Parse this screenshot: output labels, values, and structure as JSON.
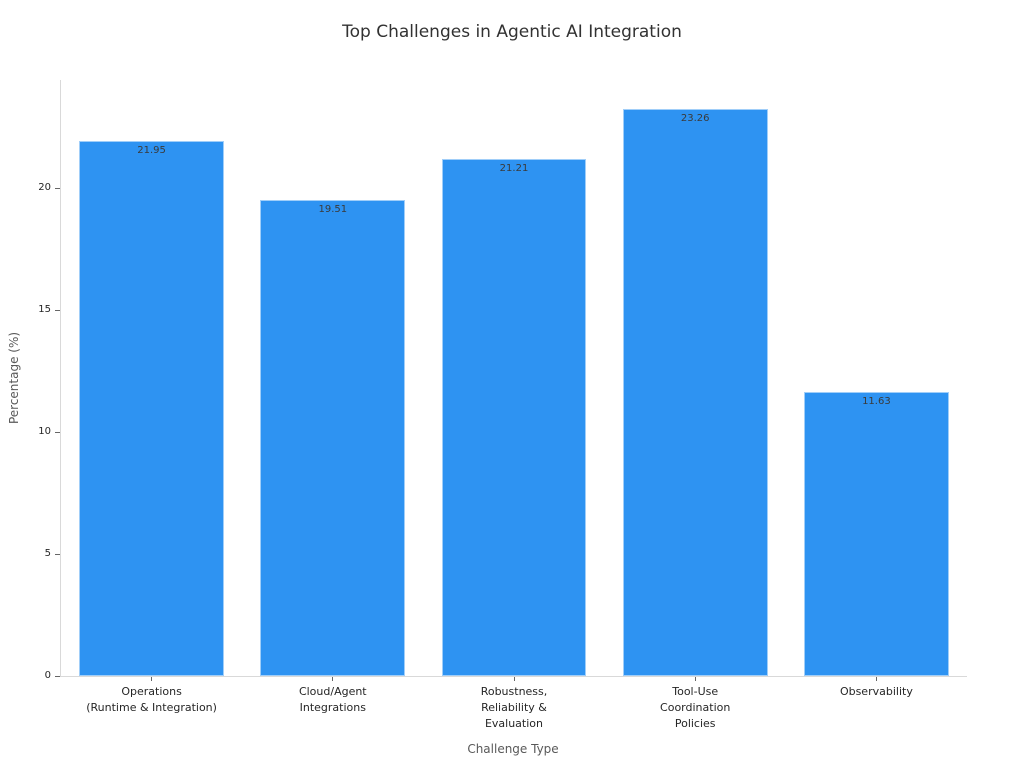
{
  "chart_data": {
    "type": "bar",
    "title": "Top Challenges in Agentic AI Integration",
    "xlabel": "Challenge Type",
    "ylabel": "Percentage (%)",
    "categories": [
      "Operations\n(Runtime & Integration)",
      "Cloud/Agent\nIntegrations",
      "Robustness,\nReliability &\nEvaluation",
      "Tool-Use\nCoordination\nPolicies",
      "Observability"
    ],
    "values": [
      21.95,
      19.51,
      21.21,
      23.26,
      11.63
    ],
    "value_labels": [
      "21.95",
      "19.51",
      "21.21",
      "23.26",
      "11.63"
    ],
    "yticks": [
      0,
      5,
      10,
      15,
      20
    ],
    "ytick_labels": [
      "0",
      "5",
      "10",
      "15",
      "20"
    ],
    "ylim": [
      0,
      24.43
    ],
    "bar_color": "#2E93F2",
    "bar_edge_color": "rgba(255,255,255,0.55)",
    "grid": "off",
    "legend": "none",
    "background_color": "#ffffff"
  }
}
